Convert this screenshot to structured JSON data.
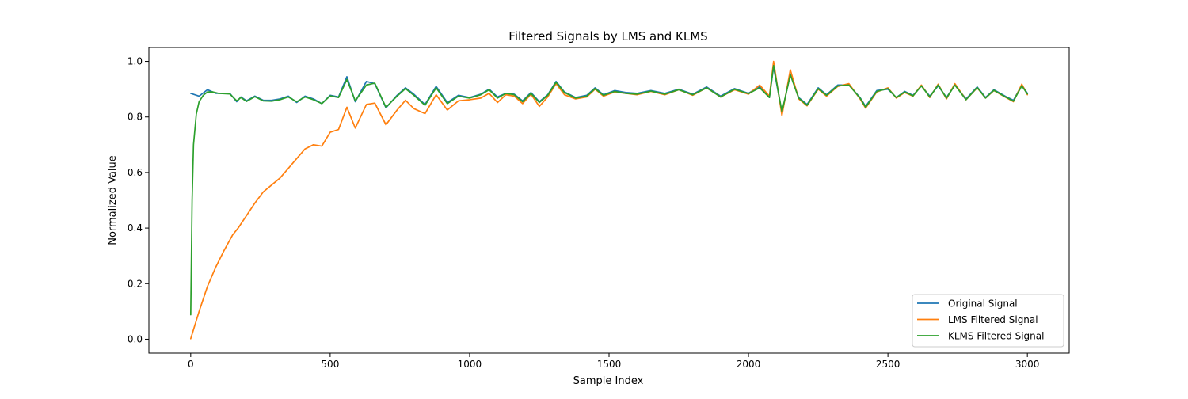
{
  "chart_data": {
    "type": "line",
    "title": "Filtered Signals by LMS and KLMS",
    "xlabel": "Sample Index",
    "ylabel": "Normalized Value",
    "xlim": [
      -150,
      3150
    ],
    "ylim": [
      -0.05,
      1.05
    ],
    "xticks": [
      0,
      500,
      1000,
      1500,
      2000,
      2500,
      3000
    ],
    "xtick_labels": [
      "0",
      "500",
      "1000",
      "1500",
      "2000",
      "2500",
      "3000"
    ],
    "yticks": [
      0.0,
      0.2,
      0.4,
      0.6,
      0.8,
      1.0
    ],
    "ytick_labels": [
      "0.0",
      "0.2",
      "0.4",
      "0.6",
      "0.8",
      "1.0"
    ],
    "grid": false,
    "legend_position": "lower-right",
    "series": [
      {
        "name": "Original Signal",
        "color": "#1f77b4",
        "x": [
          0,
          30,
          60,
          90,
          140,
          165,
          180,
          200,
          230,
          260,
          290,
          320,
          350,
          380,
          410,
          440,
          470,
          500,
          530,
          560,
          590,
          630,
          660,
          700,
          740,
          770,
          800,
          840,
          880,
          920,
          960,
          1000,
          1040,
          1070,
          1100,
          1130,
          1160,
          1190,
          1220,
          1250,
          1280,
          1310,
          1340,
          1380,
          1420,
          1450,
          1480,
          1520,
          1560,
          1600,
          1650,
          1700,
          1750,
          1800,
          1850,
          1900,
          1950,
          2000,
          2040,
          2075,
          2090,
          2120,
          2150,
          2180,
          2210,
          2250,
          2280,
          2320,
          2360,
          2400,
          2420,
          2460,
          2500,
          2530,
          2560,
          2590,
          2620,
          2650,
          2680,
          2710,
          2740,
          2780,
          2820,
          2850,
          2880,
          2920,
          2950,
          2980,
          3000
        ],
        "y": [
          0.885,
          0.875,
          0.898,
          0.885,
          0.885,
          0.855,
          0.872,
          0.858,
          0.875,
          0.86,
          0.86,
          0.865,
          0.875,
          0.852,
          0.875,
          0.865,
          0.848,
          0.878,
          0.872,
          0.945,
          0.855,
          0.928,
          0.92,
          0.833,
          0.878,
          0.905,
          0.882,
          0.845,
          0.91,
          0.852,
          0.878,
          0.87,
          0.882,
          0.9,
          0.872,
          0.885,
          0.882,
          0.858,
          0.888,
          0.855,
          0.88,
          0.928,
          0.89,
          0.87,
          0.878,
          0.905,
          0.88,
          0.895,
          0.888,
          0.885,
          0.895,
          0.885,
          0.9,
          0.882,
          0.908,
          0.875,
          0.902,
          0.885,
          0.91,
          0.87,
          0.98,
          0.815,
          0.955,
          0.87,
          0.845,
          0.905,
          0.88,
          0.915,
          0.915,
          0.87,
          0.838,
          0.895,
          0.9,
          0.87,
          0.892,
          0.878,
          0.912,
          0.875,
          0.912,
          0.87,
          0.915,
          0.865,
          0.908,
          0.87,
          0.898,
          0.875,
          0.86,
          0.915,
          0.885
        ]
      },
      {
        "name": "LMS Filtered Signal",
        "color": "#ff7f0e",
        "x": [
          0,
          30,
          60,
          90,
          120,
          150,
          170,
          200,
          230,
          260,
          290,
          320,
          350,
          380,
          410,
          440,
          470,
          500,
          530,
          560,
          590,
          630,
          660,
          700,
          740,
          770,
          800,
          840,
          880,
          920,
          960,
          1000,
          1040,
          1070,
          1100,
          1130,
          1160,
          1190,
          1220,
          1250,
          1280,
          1310,
          1340,
          1380,
          1420,
          1450,
          1480,
          1520,
          1560,
          1600,
          1650,
          1700,
          1750,
          1800,
          1850,
          1900,
          1950,
          2000,
          2040,
          2075,
          2090,
          2120,
          2150,
          2180,
          2210,
          2250,
          2280,
          2320,
          2360,
          2400,
          2420,
          2460,
          2500,
          2530,
          2560,
          2590,
          2620,
          2650,
          2680,
          2710,
          2740,
          2780,
          2820,
          2850,
          2880,
          2920,
          2950,
          2980,
          3000
        ],
        "y": [
          0.002,
          0.1,
          0.19,
          0.26,
          0.32,
          0.375,
          0.4,
          0.445,
          0.49,
          0.53,
          0.555,
          0.58,
          0.615,
          0.65,
          0.685,
          0.7,
          0.695,
          0.745,
          0.755,
          0.835,
          0.76,
          0.845,
          0.85,
          0.772,
          0.825,
          0.86,
          0.83,
          0.812,
          0.88,
          0.825,
          0.858,
          0.862,
          0.868,
          0.885,
          0.852,
          0.88,
          0.875,
          0.848,
          0.882,
          0.838,
          0.872,
          0.92,
          0.88,
          0.865,
          0.872,
          0.9,
          0.875,
          0.89,
          0.885,
          0.88,
          0.892,
          0.88,
          0.898,
          0.878,
          0.905,
          0.872,
          0.898,
          0.882,
          0.915,
          0.875,
          1.0,
          0.805,
          0.97,
          0.865,
          0.84,
          0.9,
          0.875,
          0.91,
          0.92,
          0.865,
          0.832,
          0.89,
          0.905,
          0.868,
          0.888,
          0.875,
          0.915,
          0.87,
          0.918,
          0.865,
          0.92,
          0.862,
          0.905,
          0.868,
          0.895,
          0.872,
          0.855,
          0.918,
          0.88
        ]
      },
      {
        "name": "KLMS Filtered Signal",
        "color": "#2ca02c",
        "x": [
          0,
          5,
          10,
          20,
          30,
          45,
          60,
          80,
          100,
          140,
          165,
          180,
          200,
          230,
          260,
          290,
          320,
          350,
          380,
          410,
          440,
          470,
          500,
          530,
          560,
          590,
          630,
          660,
          700,
          740,
          770,
          800,
          840,
          880,
          920,
          960,
          1000,
          1040,
          1070,
          1100,
          1130,
          1160,
          1190,
          1220,
          1250,
          1280,
          1310,
          1340,
          1380,
          1420,
          1450,
          1480,
          1520,
          1560,
          1600,
          1650,
          1700,
          1750,
          1800,
          1850,
          1900,
          1950,
          2000,
          2040,
          2075,
          2090,
          2120,
          2150,
          2180,
          2210,
          2250,
          2280,
          2320,
          2360,
          2400,
          2420,
          2460,
          2500,
          2530,
          2560,
          2590,
          2620,
          2650,
          2680,
          2710,
          2740,
          2780,
          2820,
          2850,
          2880,
          2920,
          2950,
          2980,
          3000
        ],
        "y": [
          0.088,
          0.5,
          0.7,
          0.81,
          0.855,
          0.878,
          0.89,
          0.89,
          0.885,
          0.883,
          0.858,
          0.87,
          0.856,
          0.873,
          0.858,
          0.857,
          0.862,
          0.872,
          0.855,
          0.872,
          0.862,
          0.848,
          0.876,
          0.87,
          0.935,
          0.858,
          0.915,
          0.922,
          0.835,
          0.875,
          0.902,
          0.878,
          0.842,
          0.905,
          0.848,
          0.875,
          0.868,
          0.88,
          0.898,
          0.868,
          0.885,
          0.88,
          0.855,
          0.885,
          0.852,
          0.878,
          0.925,
          0.888,
          0.868,
          0.875,
          0.902,
          0.878,
          0.892,
          0.885,
          0.882,
          0.893,
          0.882,
          0.898,
          0.88,
          0.905,
          0.872,
          0.9,
          0.884,
          0.905,
          0.87,
          0.985,
          0.818,
          0.952,
          0.868,
          0.842,
          0.902,
          0.878,
          0.912,
          0.915,
          0.868,
          0.835,
          0.892,
          0.902,
          0.87,
          0.89,
          0.876,
          0.912,
          0.872,
          0.915,
          0.868,
          0.915,
          0.862,
          0.906,
          0.868,
          0.896,
          0.873,
          0.857,
          0.912,
          0.883
        ]
      }
    ]
  }
}
